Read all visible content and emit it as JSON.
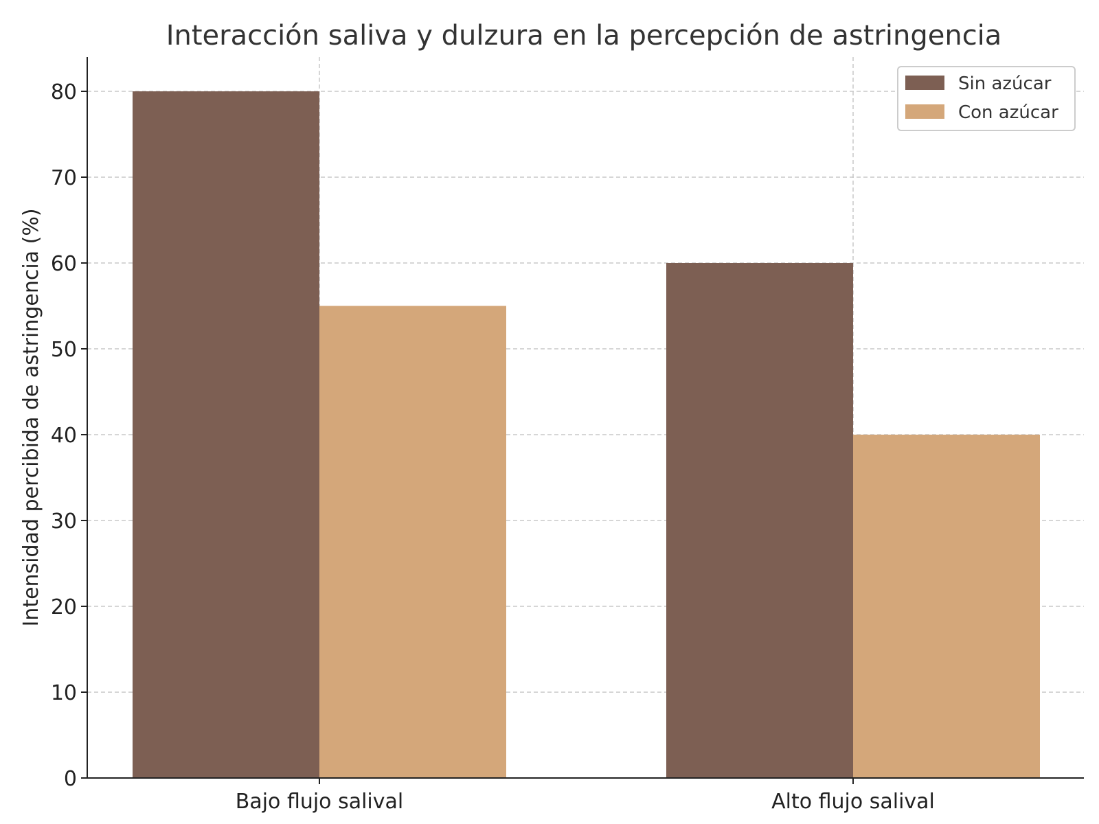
{
  "chart_data": {
    "type": "bar",
    "title": "Interacción saliva y dulzura en la percepción de astringencia",
    "xlabel": "",
    "ylabel": "Intensidad percibida de astringencia (%)",
    "categories": [
      "Bajo flujo salival",
      "Alto flujo salival"
    ],
    "series": [
      {
        "name": "Sin azúcar",
        "values": [
          80,
          60
        ],
        "color": "#7d5f53"
      },
      {
        "name": "Con azúcar",
        "values": [
          55,
          40
        ],
        "color": "#d4a77a"
      }
    ],
    "ylim": [
      0,
      84
    ],
    "yticks": [
      0,
      10,
      20,
      30,
      40,
      50,
      60,
      70,
      80
    ],
    "grid": true,
    "legend": "top-right"
  }
}
